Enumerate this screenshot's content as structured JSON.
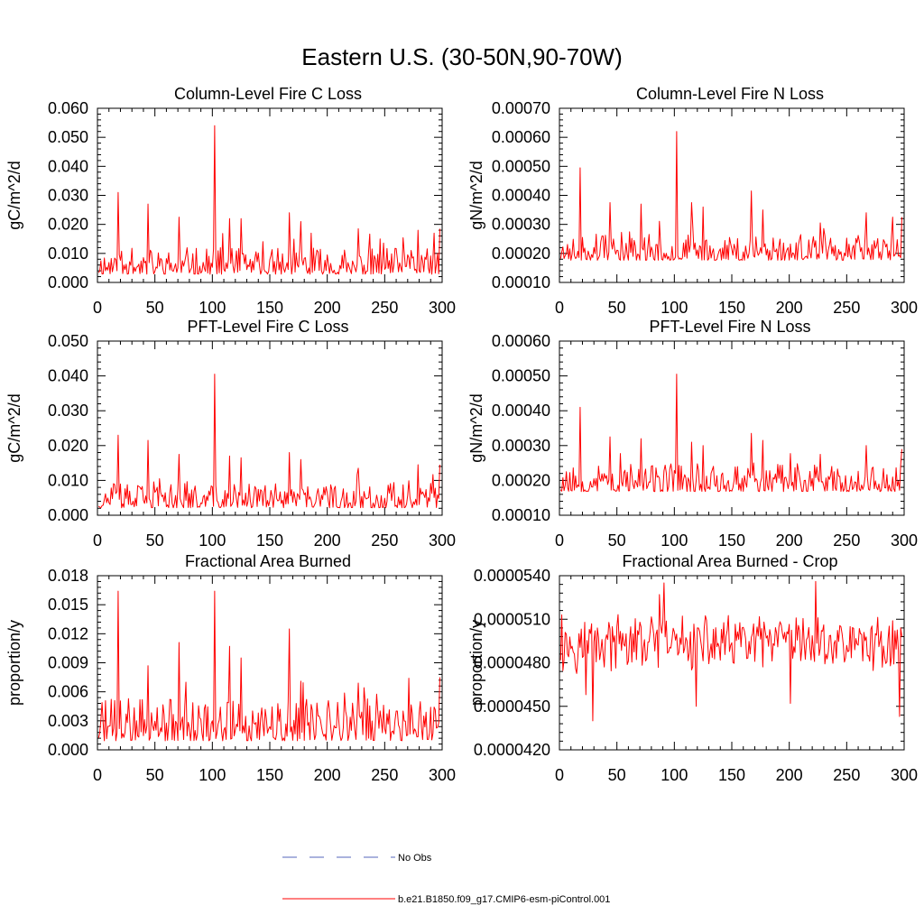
{
  "figure_title": "Eastern U.S. (30-50N,90-70W)",
  "legend": {
    "obs_label": "No Obs",
    "obs_color": "#5566bb",
    "model_label": "b.e21.B1850.f09_g17.CMIP6-esm-piControl.001",
    "model_color": "#ff0000"
  },
  "series_color": "#ff0000",
  "chart_data": [
    {
      "type": "line",
      "title": "Column-Level Fire C Loss",
      "ylabel": "gC/m^2/d",
      "xlabel": "",
      "xlim": [
        0,
        300
      ],
      "ylim": [
        0,
        0.06
      ],
      "yticks": [
        0,
        0.01,
        0.02,
        0.03,
        0.04,
        0.05,
        0.06
      ],
      "ytick_labels": [
        "0.000",
        "0.010",
        "0.020",
        "0.030",
        "0.040",
        "0.050",
        "0.060"
      ],
      "xticks": [
        0,
        50,
        100,
        150,
        200,
        250,
        300
      ],
      "xtick_labels": [
        "0",
        "50",
        "100",
        "150",
        "200",
        "250",
        "300"
      ],
      "n": 298,
      "series": [
        {
          "name": "b.e21.B1850.f09_g17.CMIP6-esm-piControl.001",
          "base": 0.0042,
          "amp": 0.0045,
          "min": 0.0003,
          "seed": 11,
          "spikes": [
            [
              17,
              0.031
            ],
            [
              43,
              0.027
            ],
            [
              70,
              0.0225
            ],
            [
              101,
              0.054
            ],
            [
              114,
              0.022
            ],
            [
              124,
              0.022
            ],
            [
              166,
              0.024
            ],
            [
              176,
              0.021
            ],
            [
              185,
              0.017
            ],
            [
              226,
              0.0185
            ],
            [
              245,
              0.015
            ],
            [
              278,
              0.018
            ],
            [
              292,
              0.017
            ],
            [
              297,
              0.0185
            ]
          ]
        }
      ]
    },
    {
      "type": "line",
      "title": "Column-Level Fire N Loss",
      "ylabel": "gN/m^2/d",
      "xlabel": "",
      "xlim": [
        0,
        300
      ],
      "ylim": [
        0.0001,
        0.0007
      ],
      "yticks": [
        0.0001,
        0.0002,
        0.0003,
        0.0004,
        0.0005,
        0.0006,
        0.0007
      ],
      "ytick_labels": [
        "0.00010",
        "0.00020",
        "0.00030",
        "0.00040",
        "0.00050",
        "0.00060",
        "0.00070"
      ],
      "xticks": [
        0,
        50,
        100,
        150,
        200,
        250,
        300
      ],
      "xtick_labels": [
        "0",
        "50",
        "100",
        "150",
        "200",
        "250",
        "300"
      ],
      "n": 298,
      "series": [
        {
          "name": "b.e21.B1850.f09_g17.CMIP6-esm-piControl.001",
          "base": 0.00019,
          "amp": 4.5e-05,
          "min": 0.000135,
          "seed": 23,
          "spikes": [
            [
              17,
              0.000495
            ],
            [
              43,
              0.000375
            ],
            [
              70,
              0.00037
            ],
            [
              101,
              0.00062
            ],
            [
              114,
              0.000375
            ],
            [
              124,
              0.00036
            ],
            [
              166,
              0.000415
            ],
            [
              176,
              0.00035
            ],
            [
              226,
              0.000305
            ],
            [
              266,
              0.00034
            ],
            [
              289,
              0.000325
            ],
            [
              297,
              0.000325
            ]
          ]
        }
      ]
    },
    {
      "type": "line",
      "title": "PFT-Level Fire C Loss",
      "ylabel": "gC/m^2/d",
      "xlabel": "",
      "xlim": [
        0,
        300
      ],
      "ylim": [
        0,
        0.05
      ],
      "yticks": [
        0,
        0.01,
        0.02,
        0.03,
        0.04,
        0.05
      ],
      "ytick_labels": [
        "0.000",
        "0.010",
        "0.020",
        "0.030",
        "0.040",
        "0.050"
      ],
      "xticks": [
        0,
        50,
        100,
        150,
        200,
        250,
        300
      ],
      "xtick_labels": [
        "0",
        "50",
        "100",
        "150",
        "200",
        "250",
        "300"
      ],
      "n": 298,
      "series": [
        {
          "name": "b.e21.B1850.f09_g17.CMIP6-esm-piControl.001",
          "base": 0.0032,
          "amp": 0.0035,
          "min": 0.0002,
          "seed": 37,
          "spikes": [
            [
              17,
              0.023
            ],
            [
              43,
              0.0215
            ],
            [
              70,
              0.0175
            ],
            [
              101,
              0.0405
            ],
            [
              114,
              0.017
            ],
            [
              124,
              0.0165
            ],
            [
              166,
              0.018
            ],
            [
              176,
              0.016
            ],
            [
              226,
              0.0135
            ],
            [
              278,
              0.0145
            ],
            [
              297,
              0.0145
            ]
          ]
        }
      ]
    },
    {
      "type": "line",
      "title": "PFT-Level Fire N Loss",
      "ylabel": "gN/m^2/d",
      "xlabel": "",
      "xlim": [
        0,
        300
      ],
      "ylim": [
        0.0001,
        0.0006
      ],
      "yticks": [
        0.0001,
        0.0002,
        0.0003,
        0.0004,
        0.0005,
        0.0006
      ],
      "ytick_labels": [
        "0.00010",
        "0.00020",
        "0.00030",
        "0.00040",
        "0.00050",
        "0.00060"
      ],
      "xticks": [
        0,
        50,
        100,
        150,
        200,
        250,
        300
      ],
      "xtick_labels": [
        "0",
        "50",
        "100",
        "150",
        "200",
        "250",
        "300"
      ],
      "n": 298,
      "series": [
        {
          "name": "b.e21.B1850.f09_g17.CMIP6-esm-piControl.001",
          "base": 0.00018,
          "amp": 4e-05,
          "min": 0.00013,
          "seed": 53,
          "spikes": [
            [
              17,
              0.00041
            ],
            [
              43,
              0.000325
            ],
            [
              70,
              0.00032
            ],
            [
              101,
              0.000505
            ],
            [
              114,
              0.00031
            ],
            [
              124,
              0.0003
            ],
            [
              166,
              0.000335
            ],
            [
              176,
              0.000315
            ],
            [
              226,
              0.000275
            ],
            [
              266,
              0.0003
            ],
            [
              297,
              0.00029
            ]
          ]
        }
      ]
    },
    {
      "type": "line",
      "title": "Fractional Area Burned",
      "ylabel": "proportion/y",
      "xlabel": "",
      "xlim": [
        0,
        300
      ],
      "ylim": [
        0,
        0.018
      ],
      "yticks": [
        0,
        0.003,
        0.006,
        0.009,
        0.012,
        0.015,
        0.018
      ],
      "ytick_labels": [
        "0.000",
        "0.003",
        "0.006",
        "0.009",
        "0.012",
        "0.015",
        "0.018"
      ],
      "xticks": [
        0,
        50,
        100,
        150,
        200,
        250,
        300
      ],
      "xtick_labels": [
        "0",
        "50",
        "100",
        "150",
        "200",
        "250",
        "300"
      ],
      "n": 298,
      "series": [
        {
          "name": "b.e21.B1850.f09_g17.CMIP6-esm-piControl.001",
          "base": 0.0016,
          "amp": 0.0022,
          "min": 0.0002,
          "seed": 71,
          "spikes": [
            [
              17,
              0.0164
            ],
            [
              43,
              0.0087
            ],
            [
              70,
              0.0111
            ],
            [
              101,
              0.0164
            ],
            [
              114,
              0.0107
            ],
            [
              124,
              0.0095
            ],
            [
              166,
              0.0125
            ],
            [
              176,
              0.0071
            ],
            [
              226,
              0.0069
            ],
            [
              270,
              0.0074
            ],
            [
              297,
              0.0075
            ]
          ]
        }
      ]
    },
    {
      "type": "line",
      "title": "Fractional Area Burned - Crop",
      "ylabel": "proportion/y",
      "xlabel": "",
      "xlim": [
        0,
        300
      ],
      "ylim": [
        4.2e-05,
        5.4e-05
      ],
      "yticks": [
        4.2e-05,
        4.5e-05,
        4.8e-05,
        5.1e-05,
        5.4e-05
      ],
      "ytick_labels": [
        "0.0000420",
        "0.0000450",
        "0.0000480",
        "0.0000510",
        "0.0000540"
      ],
      "xticks": [
        0,
        50,
        100,
        150,
        200,
        250,
        300
      ],
      "xtick_labels": [
        "0",
        "50",
        "100",
        "150",
        "200",
        "250",
        "300"
      ],
      "n": 298,
      "series": [
        {
          "name": "b.e21.B1850.f09_g17.CMIP6-esm-piControl.001",
          "base": 4.93e-05,
          "amp": 1.6e-06,
          "min": 4.5e-05,
          "seed": 97,
          "symmetric": true,
          "spikes": [
            [
              1,
              5.13e-05
            ],
            [
              28,
              4.4e-05
            ],
            [
              22,
              4.58e-05
            ],
            [
              90,
              5.35e-05
            ],
            [
              86,
              5.27e-05
            ],
            [
              118,
              4.5e-05
            ],
            [
              200,
              4.52e-05
            ],
            [
              222,
              5.36e-05
            ],
            [
              295,
              4.43e-05
            ]
          ]
        }
      ]
    }
  ]
}
